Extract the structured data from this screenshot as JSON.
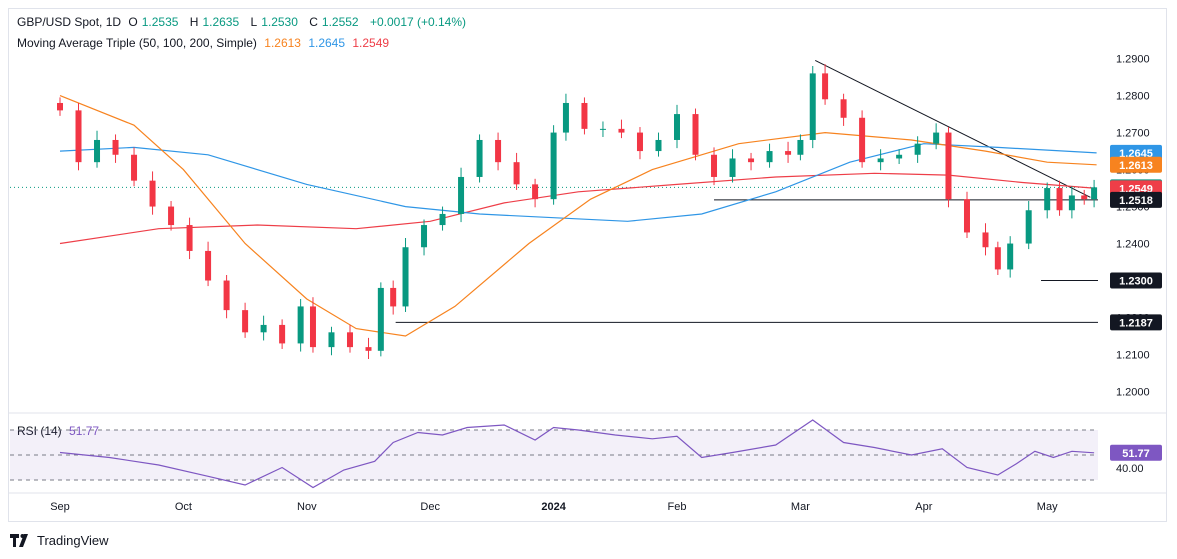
{
  "header": {
    "symbol": "GBP/USD Spot, 1D",
    "o_label": "O",
    "o": "1.2535",
    "h_label": "H",
    "h": "1.2635",
    "l_label": "L",
    "l": "1.2530",
    "c_label": "C",
    "c": "1.2552",
    "change": "+0.0017 (+0.14%)"
  },
  "ma_legend": {
    "label": "Moving Average Triple (50, 100, 200, Simple)",
    "v50": "1.2613",
    "v100": "1.2645",
    "v200": "1.2549",
    "c50": "#f7831f",
    "c100": "#2f96e6",
    "c200": "#ee3e48"
  },
  "colors": {
    "up": "#089981",
    "down": "#f23645",
    "rsi": "#7e57c2",
    "trend": "#131722",
    "tag_dark": "#131722"
  },
  "footer": {
    "brand": "TradingView"
  },
  "chart_data": {
    "type": "candlestick",
    "price_axis": {
      "ticks": [
        "1.2900",
        "1.2800",
        "1.2700",
        "1.2600",
        "1.2500",
        "1.2400",
        "1.2300",
        "1.2200",
        "1.2100",
        "1.2000"
      ],
      "range": [
        1.195,
        1.298
      ]
    },
    "time_axis": {
      "labels": [
        "Sep",
        "Oct",
        "Nov",
        "Dec",
        "2024",
        "Feb",
        "Mar",
        "Apr",
        "May"
      ]
    },
    "price_tags": [
      {
        "text": "1.2645",
        "value": 1.2645,
        "color": "#2f96e6"
      },
      {
        "text": "1.2613",
        "value": 1.2613,
        "color": "#f7831f"
      },
      {
        "text": "1.2552",
        "value": 1.2552,
        "color": "#089981"
      },
      {
        "text": "1.2549",
        "value": 1.2549,
        "color": "#ee3e48"
      },
      {
        "text": "1.2518",
        "value": 1.2518,
        "color": "#131722"
      },
      {
        "text": "1.2300",
        "value": 1.23,
        "color": "#131722"
      },
      {
        "text": "1.2187",
        "value": 1.2187,
        "color": "#131722"
      }
    ],
    "levels": [
      {
        "value": 1.2518,
        "from_month": 5.3
      },
      {
        "value": 1.23,
        "from_month": 7.95
      },
      {
        "value": 1.2187,
        "from_month": 2.72
      }
    ],
    "trendline": {
      "from": [
        6.12,
        1.2895
      ],
      "to": [
        8.35,
        1.2525
      ]
    },
    "closes": [
      [
        0.0,
        1.276
      ],
      [
        0.15,
        1.262
      ],
      [
        0.3,
        1.268
      ],
      [
        0.45,
        1.264
      ],
      [
        0.6,
        1.257
      ],
      [
        0.75,
        1.25
      ],
      [
        0.9,
        1.245
      ],
      [
        1.05,
        1.238
      ],
      [
        1.2,
        1.23
      ],
      [
        1.35,
        1.222
      ],
      [
        1.5,
        1.216
      ],
      [
        1.65,
        1.218
      ],
      [
        1.8,
        1.213
      ],
      [
        1.95,
        1.223
      ],
      [
        2.05,
        1.212
      ],
      [
        2.2,
        1.216
      ],
      [
        2.35,
        1.212
      ],
      [
        2.5,
        1.211
      ],
      [
        2.6,
        1.228
      ],
      [
        2.7,
        1.223
      ],
      [
        2.8,
        1.239
      ],
      [
        2.95,
        1.245
      ],
      [
        3.1,
        1.248
      ],
      [
        3.25,
        1.258
      ],
      [
        3.4,
        1.268
      ],
      [
        3.55,
        1.262
      ],
      [
        3.7,
        1.256
      ],
      [
        3.85,
        1.252
      ],
      [
        4.0,
        1.27
      ],
      [
        4.1,
        1.278
      ],
      [
        4.25,
        1.271
      ],
      [
        4.4,
        1.271
      ],
      [
        4.55,
        1.27
      ],
      [
        4.7,
        1.265
      ],
      [
        4.85,
        1.268
      ],
      [
        5.0,
        1.275
      ],
      [
        5.15,
        1.264
      ],
      [
        5.3,
        1.258
      ],
      [
        5.45,
        1.263
      ],
      [
        5.6,
        1.262
      ],
      [
        5.75,
        1.265
      ],
      [
        5.9,
        1.264
      ],
      [
        6.0,
        1.268
      ],
      [
        6.1,
        1.286
      ],
      [
        6.2,
        1.279
      ],
      [
        6.35,
        1.274
      ],
      [
        6.5,
        1.262
      ],
      [
        6.65,
        1.263
      ],
      [
        6.8,
        1.264
      ],
      [
        6.95,
        1.267
      ],
      [
        7.1,
        1.27
      ],
      [
        7.2,
        1.252
      ],
      [
        7.35,
        1.243
      ],
      [
        7.5,
        1.239
      ],
      [
        7.6,
        1.233
      ],
      [
        7.7,
        1.24
      ],
      [
        7.85,
        1.249
      ],
      [
        8.0,
        1.255
      ],
      [
        8.1,
        1.249
      ],
      [
        8.2,
        1.253
      ],
      [
        8.3,
        1.252
      ],
      [
        8.38,
        1.2552
      ]
    ],
    "ma50": [
      [
        0.0,
        1.28
      ],
      [
        0.6,
        1.272
      ],
      [
        1.0,
        1.26
      ],
      [
        1.5,
        1.24
      ],
      [
        2.0,
        1.225
      ],
      [
        2.4,
        1.217
      ],
      [
        2.8,
        1.215
      ],
      [
        3.2,
        1.223
      ],
      [
        3.8,
        1.24
      ],
      [
        4.3,
        1.252
      ],
      [
        4.8,
        1.26
      ],
      [
        5.5,
        1.267
      ],
      [
        6.2,
        1.27
      ],
      [
        6.9,
        1.268
      ],
      [
        7.5,
        1.265
      ],
      [
        8.0,
        1.262
      ],
      [
        8.4,
        1.2613
      ]
    ],
    "ma100": [
      [
        0.0,
        1.265
      ],
      [
        0.6,
        1.266
      ],
      [
        1.2,
        1.264
      ],
      [
        2.0,
        1.256
      ],
      [
        2.8,
        1.25
      ],
      [
        3.4,
        1.248
      ],
      [
        4.0,
        1.247
      ],
      [
        4.6,
        1.246
      ],
      [
        5.2,
        1.248
      ],
      [
        5.8,
        1.254
      ],
      [
        6.4,
        1.262
      ],
      [
        7.0,
        1.267
      ],
      [
        7.6,
        1.266
      ],
      [
        8.4,
        1.2645
      ]
    ],
    "ma200": [
      [
        0.0,
        1.24
      ],
      [
        0.8,
        1.244
      ],
      [
        1.6,
        1.245
      ],
      [
        2.4,
        1.244
      ],
      [
        3.0,
        1.246
      ],
      [
        3.6,
        1.251
      ],
      [
        4.2,
        1.254
      ],
      [
        5.0,
        1.256
      ],
      [
        5.8,
        1.258
      ],
      [
        6.6,
        1.259
      ],
      [
        7.2,
        1.2585
      ],
      [
        7.8,
        1.2565
      ],
      [
        8.4,
        1.2549
      ]
    ],
    "rsi": {
      "label": "RSI (14)",
      "value": "51.77",
      "value_num": 51.77,
      "level_label": "40.00",
      "levels": [
        70,
        50,
        30
      ],
      "range": [
        22,
        78
      ],
      "points": [
        [
          0.0,
          52
        ],
        [
          0.4,
          48
        ],
        [
          0.8,
          42
        ],
        [
          1.2,
          33
        ],
        [
          1.5,
          26
        ],
        [
          1.8,
          40
        ],
        [
          2.05,
          24
        ],
        [
          2.3,
          38
        ],
        [
          2.55,
          45
        ],
        [
          2.7,
          60
        ],
        [
          2.9,
          68
        ],
        [
          3.1,
          66
        ],
        [
          3.3,
          72
        ],
        [
          3.6,
          74
        ],
        [
          3.85,
          62
        ],
        [
          4.0,
          72
        ],
        [
          4.2,
          70
        ],
        [
          4.5,
          66
        ],
        [
          4.8,
          63
        ],
        [
          5.0,
          65
        ],
        [
          5.2,
          48
        ],
        [
          5.45,
          52
        ],
        [
          5.8,
          58
        ],
        [
          6.1,
          78
        ],
        [
          6.35,
          60
        ],
        [
          6.6,
          56
        ],
        [
          6.9,
          50
        ],
        [
          7.15,
          55
        ],
        [
          7.35,
          40
        ],
        [
          7.6,
          34
        ],
        [
          7.75,
          43
        ],
        [
          7.9,
          53
        ],
        [
          8.05,
          48
        ],
        [
          8.2,
          53
        ],
        [
          8.38,
          51.77
        ]
      ]
    }
  }
}
